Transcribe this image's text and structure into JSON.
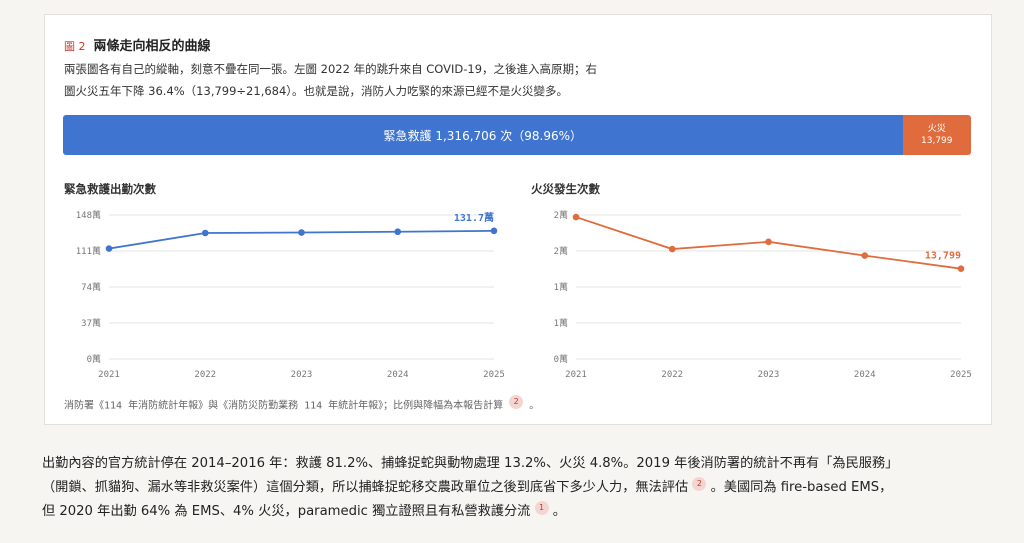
{
  "figure": {
    "label": "圖 2",
    "title": "兩條走向相反的曲線",
    "desc_line1": "兩張圖各有自己的縱軸，刻意不疊在同一張。左圖 2022 年的跳升來自 COVID-19，之後進入高原期；右",
    "desc_line2": "圖火災五年下降 36.4%（13,799÷21,684）。也就是說，消防人力吃緊的來源已經不是火災變多。"
  },
  "share_bar": {
    "ems_label": "緊急救護 1,316,706 次（98.96%）",
    "fire_label": "火災",
    "fire_value": "13,799",
    "ems_share": 0.9896,
    "colors": {
      "ems": "#3f74d1",
      "fire": "#e06c3e"
    }
  },
  "chart_data": [
    {
      "type": "line",
      "title": "緊急救護出勤次數",
      "x": [
        "2021",
        "2022",
        "2023",
        "2024",
        "2025"
      ],
      "y": [
        113.5,
        129.5,
        130.0,
        130.8,
        131.7
      ],
      "ylim": [
        0,
        148
      ],
      "yticks": [
        0,
        37,
        74,
        111,
        148
      ],
      "ytick_labels": [
        "0萬",
        "37萬",
        "74萬",
        "111萬",
        "148萬"
      ],
      "end_label": "131.7萬",
      "color": "#3f74d1",
      "grid": true
    },
    {
      "type": "line",
      "title": "火災發生次數",
      "x": [
        "2021",
        "2022",
        "2023",
        "2024",
        "2025"
      ],
      "y": [
        21684,
        16800,
        17900,
        15800,
        13799
      ],
      "ylim": [
        0,
        22000
      ],
      "yticks": [
        0,
        5500,
        11000,
        16500,
        22000
      ],
      "ytick_labels": [
        "0萬",
        "1萬",
        "1萬",
        "2萬",
        "2萬"
      ],
      "end_label": "13,799",
      "color": "#e06c3e",
      "grid": true
    }
  ],
  "source": {
    "text": "消防署《114 年消防統計年報》與《消防災防勤業務 114 年統計年報》；比例與降幅為本報告計算",
    "cite": "2",
    "tail": "。"
  },
  "paragraph": {
    "line1": "出勤內容的官方統計停在 2014–2016 年：救護 81.2%、捕蜂捉蛇與動物處理 13.2%、火災 4.8%。2019 年後消防署的統計不再有「為民服務」",
    "line2": "（開鎖、抓貓狗、漏水等非救災案件）這個分類，所以捕蜂捉蛇移交農政單位之後到底省下多少人力，無法評估",
    "line2_cite": "2",
    "line2_tail": "。美國同為 fire-based EMS，",
    "line3": "但 2020 年出勤 64% 為 EMS、4% 火災，paramedic 獨立證照且有私營救護分流",
    "line3_cite": "1",
    "line3_tail": "。"
  }
}
